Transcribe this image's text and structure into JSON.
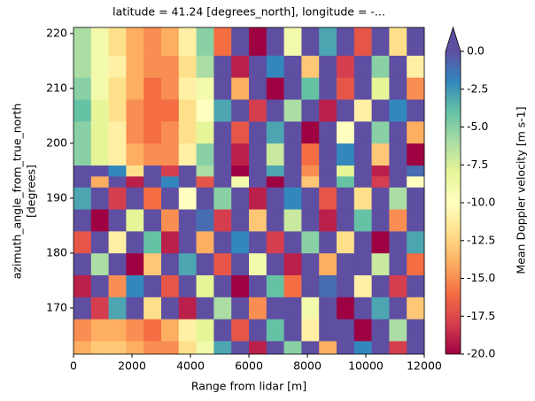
{
  "chart_data": {
    "type": "heatmap",
    "title": "latitude = 41.24 [degrees_north], longitude = -...",
    "xlabel": "Range from lidar [m]",
    "ylabel": [
      "azimuth_angle_from_true_north",
      "[degrees]"
    ],
    "colorbar_label": "Mean Doppler velocity [m s-1]",
    "x_edges": [
      0,
      600,
      1200,
      1800,
      2400,
      3000,
      3600,
      4200,
      4800,
      5400,
      6000,
      6600,
      7200,
      7800,
      8400,
      9000,
      9600,
      10200,
      10800,
      11400,
      12000
    ],
    "y_edges": [
      161.6,
      164,
      168,
      172,
      176,
      180,
      184,
      188,
      192,
      194,
      196,
      200,
      204,
      208,
      212,
      216,
      221.1
    ],
    "values": [
      [
        -14,
        -13,
        -13,
        -14,
        -15,
        -15,
        -12,
        -9,
        -3,
        0,
        -19,
        0,
        -5,
        0,
        -14,
        0,
        -2,
        0,
        -18,
        0
      ],
      [
        -15,
        -14,
        -14,
        -15,
        -16,
        -14,
        -11,
        -8,
        0,
        -17,
        0,
        -4,
        0,
        -11,
        0,
        0,
        -20,
        0,
        -6,
        0
      ],
      [
        0,
        -18,
        -3,
        0,
        -12,
        0,
        -19,
        0,
        -6,
        0,
        -15,
        0,
        0,
        -9,
        0,
        -20,
        0,
        -3,
        0,
        -13
      ],
      [
        -19,
        0,
        -15,
        -2,
        0,
        -17,
        0,
        -8,
        0,
        -20,
        0,
        -4,
        -16,
        0,
        -1,
        0,
        -11,
        0,
        -18,
        0
      ],
      [
        0,
        -6,
        0,
        -20,
        -13,
        0,
        -3,
        0,
        -17,
        0,
        -9,
        0,
        -19,
        0,
        -14,
        0,
        0,
        -7,
        0,
        -16
      ],
      [
        -17,
        0,
        -11,
        0,
        -4,
        -19,
        0,
        -14,
        0,
        -2,
        0,
        -18,
        0,
        -5,
        0,
        -12,
        0,
        -20,
        0,
        -3
      ],
      [
        0,
        -20,
        0,
        -8,
        0,
        -15,
        0,
        -1,
        -18,
        0,
        -13,
        0,
        -7,
        0,
        -19,
        0,
        -4,
        0,
        -15,
        0
      ],
      [
        -3,
        0,
        -18,
        0,
        -16,
        0,
        -10,
        0,
        -5,
        0,
        -19,
        0,
        -2,
        0,
        -17,
        0,
        -12,
        0,
        -6,
        0
      ],
      [
        0,
        -14,
        0,
        -19,
        0,
        -2,
        0,
        -17,
        0,
        -9,
        0,
        -20,
        0,
        -13,
        0,
        -4,
        0,
        -18,
        0,
        -10
      ],
      [
        0,
        0,
        -2,
        -12,
        0,
        -18,
        0,
        -6,
        0,
        -20,
        0,
        -3,
        0,
        -15,
        0,
        -8,
        0,
        -19,
        0,
        -1
      ],
      [
        -5,
        -8,
        -11,
        -14,
        -15,
        -15,
        -11,
        -5,
        0,
        -19,
        0,
        -7,
        0,
        -16,
        0,
        -2,
        0,
        -13,
        0,
        -20
      ],
      [
        -5,
        -8,
        -11,
        -15,
        -16,
        -15,
        -12,
        -8,
        0,
        -17,
        0,
        -3,
        0,
        -20,
        0,
        -10,
        0,
        -5,
        0,
        -14
      ],
      [
        -4,
        -8,
        -12,
        -15,
        -16,
        -16,
        -12,
        -10,
        -3,
        0,
        -18,
        0,
        -6,
        0,
        -19,
        0,
        -11,
        0,
        -2,
        0
      ],
      [
        -5,
        -9,
        -12,
        -14,
        -16,
        -15,
        -11,
        -9,
        0,
        -14,
        0,
        -20,
        0,
        -4,
        0,
        -17,
        0,
        -8,
        0,
        -15
      ],
      [
        -6,
        -9,
        -11,
        -14,
        -15,
        -15,
        -12,
        -6,
        0,
        -19,
        0,
        -2,
        0,
        -13,
        0,
        -18,
        0,
        -5,
        0,
        -11
      ],
      [
        -6,
        -9,
        -12,
        -14,
        -15,
        -14,
        -11,
        -5,
        -16,
        0,
        -20,
        0,
        -9,
        0,
        -3,
        0,
        -17,
        0,
        -12,
        0
      ]
    ],
    "xlim": [
      0,
      12000
    ],
    "xticks": [
      0,
      2000,
      4000,
      6000,
      8000,
      10000,
      12000
    ],
    "ylim": [
      161.6,
      221.1
    ],
    "yticks": [
      170,
      180,
      190,
      200,
      210,
      220
    ],
    "clim": [
      -20,
      0
    ],
    "cticks": [
      {
        "value": 0,
        "label": "0.0"
      },
      {
        "value": -2.5,
        "label": "-2.5"
      },
      {
        "value": -5,
        "label": "-5.0"
      },
      {
        "value": -7.5,
        "label": "-7.5"
      },
      {
        "value": -10,
        "label": "-10.0"
      },
      {
        "value": -12.5,
        "label": "-12.5"
      },
      {
        "value": -15,
        "label": "-15.0"
      },
      {
        "value": -17.5,
        "label": "-17.5"
      },
      {
        "value": -20,
        "label": "-20.0"
      }
    ],
    "extend": "max",
    "colormap": [
      "#9e0142",
      "#d53e4f",
      "#f46d43",
      "#fdae61",
      "#fee08b",
      "#ffffbf",
      "#e6f598",
      "#abdda4",
      "#66c2a5",
      "#3288bd",
      "#5e4fa2"
    ]
  }
}
